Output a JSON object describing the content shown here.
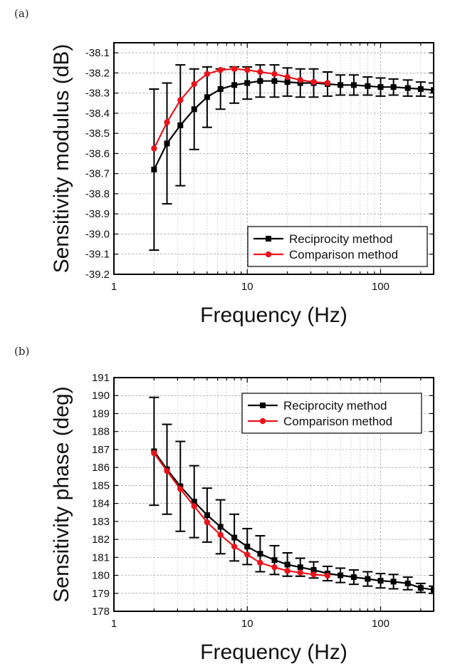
{
  "chart_data": [
    {
      "type": "line",
      "panel_label": "(a)",
      "xlabel": "Frequency (Hz)",
      "ylabel": "Sensitivity modulus (dB)",
      "xscale": "log",
      "xlim": [
        1,
        250
      ],
      "ylim": [
        -39.2,
        -38.05
      ],
      "x_ticks": [
        1,
        10,
        100
      ],
      "x_tick_labels": [
        "1",
        "10",
        "100"
      ],
      "y_ticks": [
        -39.2,
        -39.1,
        -39.0,
        -38.9,
        -38.8,
        -38.7,
        -38.6,
        -38.5,
        -38.4,
        -38.3,
        -38.2,
        -38.1
      ],
      "y_tick_labels": [
        "-39.2",
        "-39.1",
        "-39.0",
        "-38.9",
        "-38.8",
        "-38.7",
        "-38.6",
        "-38.5",
        "-38.4",
        "-38.3",
        "-38.2",
        "-38.1"
      ],
      "grid": true,
      "legend_position": "bottom-right",
      "series": [
        {
          "name": "Reciprocity method",
          "color": "#000000",
          "marker": "square",
          "x": [
            2,
            2.5,
            3.15,
            4,
            5,
            6.3,
            8,
            10,
            12.5,
            16,
            20,
            25,
            31.5,
            40,
            50,
            63,
            80,
            100,
            125,
            160,
            200,
            250
          ],
          "y": [
            -38.68,
            -38.55,
            -38.46,
            -38.38,
            -38.32,
            -38.28,
            -38.26,
            -38.25,
            -38.24,
            -38.24,
            -38.245,
            -38.25,
            -38.25,
            -38.255,
            -38.26,
            -38.26,
            -38.265,
            -38.27,
            -38.27,
            -38.275,
            -38.28,
            -38.285
          ],
          "err": [
            0.4,
            0.3,
            0.3,
            0.2,
            0.15,
            0.1,
            0.09,
            0.08,
            0.08,
            0.08,
            0.07,
            0.07,
            0.07,
            0.06,
            0.05,
            0.05,
            0.045,
            0.045,
            0.04,
            0.04,
            0.035,
            0.035
          ]
        },
        {
          "name": "Comparison method",
          "color": "#e8141c",
          "marker": "circle",
          "x": [
            2,
            2.5,
            3.15,
            4,
            5,
            6.3,
            8,
            10,
            12.5,
            16,
            20,
            25,
            31.5,
            40
          ],
          "y": [
            -38.575,
            -38.445,
            -38.335,
            -38.255,
            -38.205,
            -38.185,
            -38.18,
            -38.185,
            -38.195,
            -38.205,
            -38.22,
            -38.235,
            -38.245,
            -38.25
          ],
          "err": []
        }
      ]
    },
    {
      "type": "line",
      "panel_label": "(b)",
      "xlabel": "Frequency (Hz)",
      "ylabel": "Sensitivity phase (deg)",
      "xscale": "log",
      "xlim": [
        1,
        250
      ],
      "ylim": [
        178,
        191
      ],
      "x_ticks": [
        1,
        10,
        100
      ],
      "x_tick_labels": [
        "1",
        "10",
        "100"
      ],
      "y_ticks": [
        178,
        179,
        180,
        181,
        182,
        183,
        184,
        185,
        186,
        187,
        188,
        189,
        190,
        191
      ],
      "y_tick_labels": [
        "178",
        "179",
        "180",
        "181",
        "182",
        "183",
        "184",
        "185",
        "186",
        "187",
        "188",
        "189",
        "190",
        "191"
      ],
      "grid": true,
      "legend_position": "top-right",
      "series": [
        {
          "name": "Reciprocity method",
          "color": "#000000",
          "marker": "square",
          "x": [
            2,
            2.5,
            3.15,
            4,
            5,
            6.3,
            8,
            10,
            12.5,
            16,
            20,
            25,
            31.5,
            40,
            50,
            63,
            80,
            100,
            125,
            160,
            200,
            250
          ],
          "y": [
            186.9,
            185.9,
            184.95,
            184.1,
            183.35,
            182.7,
            182.1,
            181.6,
            181.2,
            180.85,
            180.6,
            180.45,
            180.3,
            180.1,
            180.0,
            179.9,
            179.8,
            179.7,
            179.65,
            179.55,
            179.3,
            179.2
          ],
          "err": [
            3.0,
            2.5,
            2.5,
            2.0,
            1.5,
            1.5,
            1.3,
            1.0,
            1.0,
            0.8,
            0.65,
            0.5,
            0.45,
            0.4,
            0.4,
            0.4,
            0.4,
            0.4,
            0.4,
            0.35,
            0.25,
            0.2
          ]
        },
        {
          "name": "Comparison method",
          "color": "#e8141c",
          "marker": "circle",
          "x": [
            2,
            2.5,
            3.15,
            4,
            5,
            6.3,
            8,
            10,
            12.5,
            16,
            20,
            25,
            31.5,
            40
          ],
          "y": [
            186.8,
            185.8,
            184.8,
            183.85,
            182.95,
            182.25,
            181.6,
            181.15,
            180.7,
            180.45,
            180.25,
            180.15,
            180.05,
            179.98
          ],
          "err": []
        }
      ]
    }
  ]
}
